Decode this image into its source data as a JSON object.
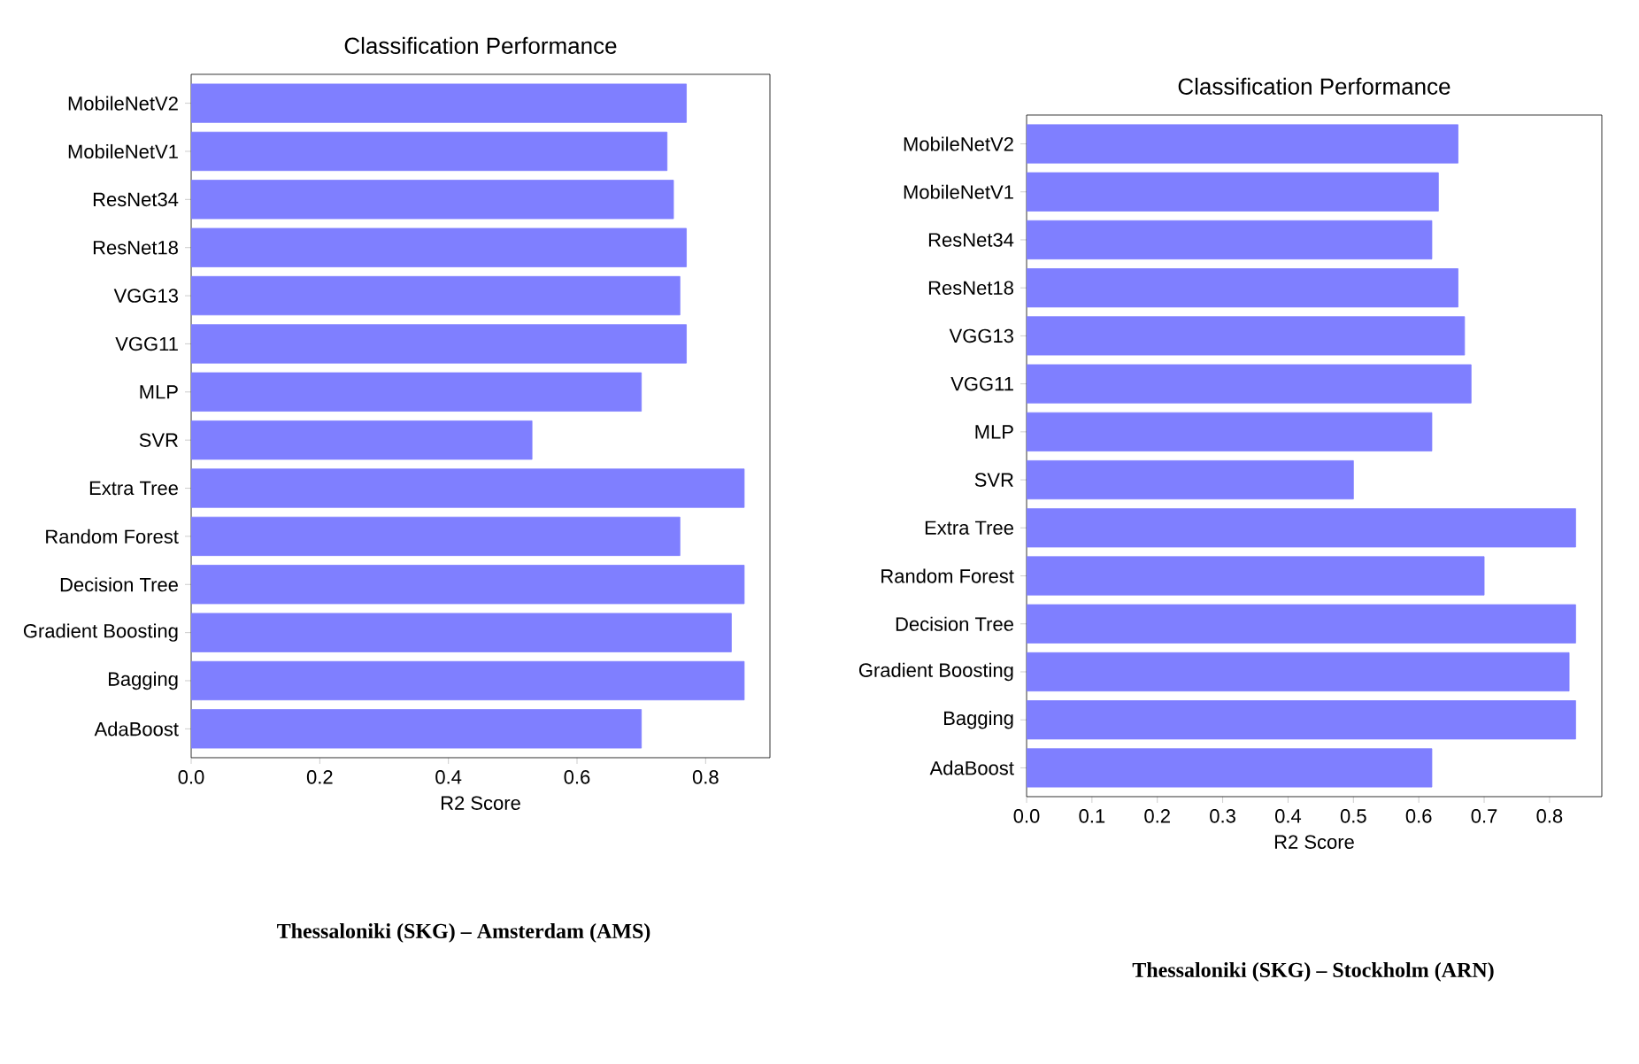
{
  "chart_data": [
    {
      "type": "bar",
      "orientation": "horizontal",
      "title": "Classification Performance",
      "xlabel": "R2 Score",
      "color": "#7f7fff",
      "categories": [
        "MobileNetV2",
        "MobileNetV1",
        "ResNet34",
        "ResNet18",
        "VGG13",
        "VGG11",
        "MLP",
        "SVR",
        "Extra Tree",
        "Random Forest",
        "Decision Tree",
        "Gradient Boosting",
        "Bagging",
        "AdaBoost"
      ],
      "values": [
        0.77,
        0.74,
        0.75,
        0.77,
        0.76,
        0.77,
        0.7,
        0.53,
        0.86,
        0.76,
        0.86,
        0.84,
        0.86,
        0.7
      ],
      "xlim": [
        0,
        0.9
      ],
      "xticks": [
        {
          "value": 0,
          "label": "0.0"
        },
        0.2,
        0.4,
        0.6,
        0.8
      ],
      "annotations": [
        "Thessaloniki (SKG) – Amsterdam (AMS)"
      ]
    },
    {
      "type": "bar",
      "orientation": "horizontal",
      "title": "Classification Performance",
      "xlabel": "R2 Score",
      "color": "#7f7fff",
      "categories": [
        "MobileNetV2",
        "MobileNetV1",
        "ResNet34",
        "ResNet18",
        "VGG13",
        "VGG11",
        "MLP",
        "SVR",
        "Extra Tree",
        "Random Forest",
        "Decision Tree",
        "Gradient Boosting",
        "Bagging",
        "AdaBoost"
      ],
      "values": [
        0.66,
        0.63,
        0.62,
        0.66,
        0.67,
        0.68,
        0.62,
        0.5,
        0.84,
        0.7,
        0.84,
        0.83,
        0.84,
        0.62
      ],
      "xlim": [
        0,
        0.88
      ],
      "xticks": [
        {
          "value": 0,
          "label": "0.0"
        },
        0.1,
        0.2,
        0.3,
        0.4,
        0.5,
        0.6,
        0.7,
        0.8
      ],
      "annotations": [
        "Thessaloniki (SKG) – Stockholm (ARN)"
      ]
    }
  ]
}
